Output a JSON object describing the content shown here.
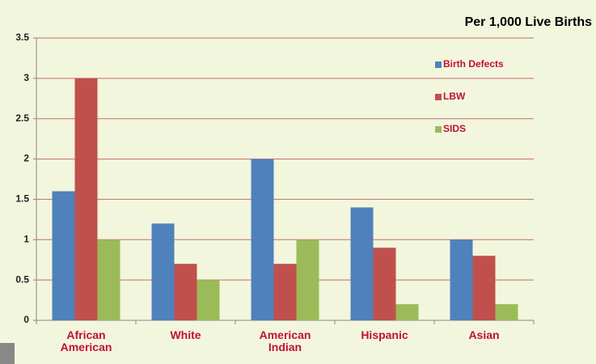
{
  "chart_data": {
    "type": "bar",
    "title": "Per 1,000 Live Births",
    "categories": [
      "African American",
      "White",
      "American Indian",
      "Hispanic",
      "Asian"
    ],
    "series": [
      {
        "name": "Birth Defects",
        "color": "#4f81bd",
        "values": [
          1.6,
          1.2,
          2.0,
          1.4,
          1.0
        ]
      },
      {
        "name": "LBW",
        "color": "#c0504d",
        "values": [
          3.0,
          0.7,
          0.7,
          0.9,
          0.8
        ]
      },
      {
        "name": "SIDS",
        "color": "#9bbb59",
        "values": [
          1.0,
          0.5,
          1.0,
          0.2,
          0.2
        ]
      }
    ],
    "ylim": [
      0,
      3.5
    ],
    "yticks": [
      0,
      0.5,
      1,
      1.5,
      2,
      2.5,
      3,
      3.5
    ],
    "grid": true
  }
}
